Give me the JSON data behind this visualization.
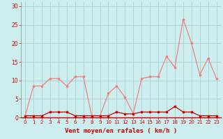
{
  "hours": [
    0,
    1,
    2,
    3,
    4,
    5,
    6,
    7,
    8,
    9,
    10,
    11,
    12,
    13,
    14,
    15,
    16,
    17,
    18,
    19,
    20,
    21,
    22,
    23
  ],
  "rafales": [
    0.5,
    8.5,
    8.5,
    10.5,
    10.5,
    8.5,
    11,
    11,
    0.5,
    0.5,
    6.5,
    8.5,
    5.5,
    1.0,
    10.5,
    11,
    11,
    16.5,
    13.5,
    26.5,
    20,
    11.5,
    16,
    10.5
  ],
  "moyen": [
    0.5,
    0.5,
    0.5,
    1.5,
    1.5,
    1.5,
    0.5,
    0.5,
    0.5,
    0.5,
    0.5,
    1.5,
    1.0,
    1.0,
    1.5,
    1.5,
    1.5,
    1.5,
    3.0,
    1.5,
    1.5,
    0.5,
    0.5,
    0.5
  ],
  "color_rafales": "#f08080",
  "color_moyen": "#cc0000",
  "bg_color": "#cceeee",
  "grid_color": "#aacccc",
  "xlabel": "Vent moyen/en rafales ( km/h )",
  "xlabel_color": "#cc0000",
  "ylabel_color": "#cc0000",
  "tick_color": "#cc0000",
  "yticks": [
    0,
    5,
    10,
    15,
    20,
    25,
    30
  ],
  "ylim": [
    0,
    31
  ],
  "xlim": [
    -0.5,
    23.5
  ]
}
